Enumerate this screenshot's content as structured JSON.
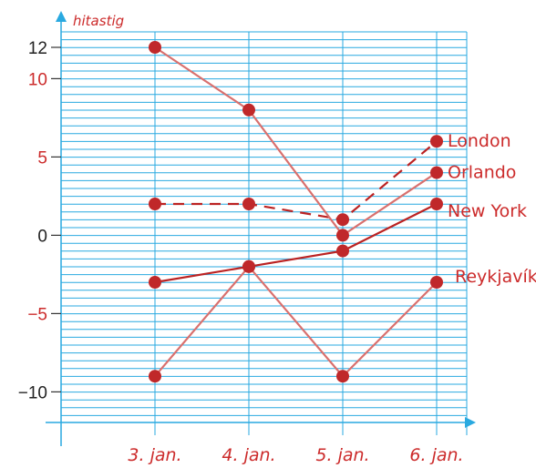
{
  "chart_data": {
    "type": "line",
    "ylabel": "hitastig",
    "xlabel": "",
    "categories": [
      "3. jan.",
      "4. jan.",
      "5. jan.",
      "6. jan."
    ],
    "ylim": [
      -12,
      12
    ],
    "y_ticks": [
      {
        "value": 12,
        "label": "12",
        "color": "#222222"
      },
      {
        "value": 10,
        "label": "10",
        "color": "#cc2b2b"
      },
      {
        "value": 5,
        "label": "5",
        "color": "#cc2b2b"
      },
      {
        "value": 0,
        "label": "0",
        "color": "#222222"
      },
      {
        "value": -5,
        "label": "−5",
        "color": "#cc2b2b"
      },
      {
        "value": -10,
        "label": "−10",
        "color": "#222222"
      }
    ],
    "grid": true,
    "colors": {
      "grid": "#29a9e0",
      "axis": "#29a9e0",
      "text": "#cc2b2b",
      "line_dark": "#bb2222",
      "line_light": "#d9706e",
      "marker": "#c0282a"
    },
    "series": [
      {
        "name": "London",
        "values": [
          2,
          2,
          1,
          6
        ],
        "style": "dashed",
        "color": "#bb2222"
      },
      {
        "name": "Orlando",
        "values": [
          12,
          8,
          0,
          4
        ],
        "style": "solid",
        "color": "#d9706e"
      },
      {
        "name": "New York",
        "values": [
          -3,
          -2,
          -1,
          2
        ],
        "style": "solid",
        "color": "#bb2222"
      },
      {
        "name": "Reykjavík",
        "values": [
          -9,
          -2,
          -9,
          -3
        ],
        "style": "solid",
        "color": "#d9706e"
      }
    ]
  }
}
